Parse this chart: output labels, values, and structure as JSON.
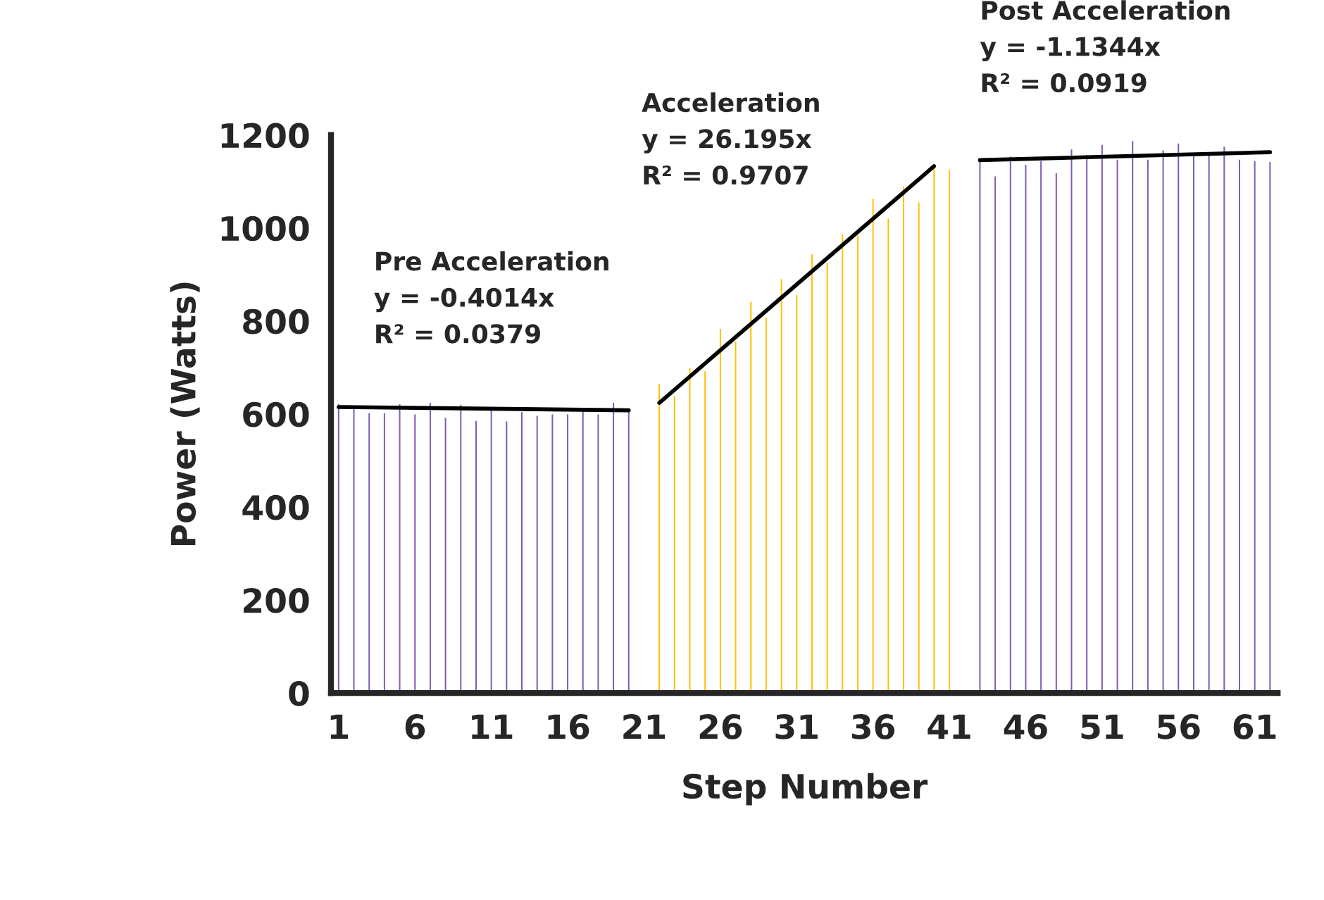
{
  "chart_data": {
    "type": "bar",
    "xlabel": "Step Number",
    "ylabel": "Power (Watts)",
    "xlim": [
      0.5,
      62.5
    ],
    "xticks": [
      1,
      6,
      11,
      16,
      21,
      26,
      31,
      36,
      41,
      46,
      51,
      56,
      61
    ],
    "ylim": [
      0,
      1200
    ],
    "yticks": [
      0,
      200,
      400,
      600,
      800,
      1000,
      1200
    ],
    "grid": false,
    "legend": false,
    "series": [
      {
        "color": "#7e5bb5",
        "x": [
          1,
          2,
          3,
          4,
          5,
          6,
          7,
          8,
          9,
          10,
          11,
          12,
          13,
          14,
          15,
          16,
          17,
          18,
          19,
          20
        ],
        "values": [
          623,
          613,
          604,
          604,
          623,
          601,
          626,
          594,
          622,
          587,
          610,
          586,
          606,
          598,
          601,
          601,
          608,
          601,
          626,
          610
        ]
      },
      {
        "color": "#ffc000",
        "x": [
          22,
          23,
          24,
          25,
          26,
          27,
          28,
          29,
          30,
          31,
          32,
          33,
          34,
          35,
          36,
          37,
          38,
          39,
          40,
          41
        ],
        "values": [
          667,
          641,
          702,
          694,
          785,
          758,
          843,
          809,
          892,
          858,
          946,
          927,
          989,
          986,
          1065,
          1022,
          1091,
          1057,
          1131,
          1127
        ]
      },
      {
        "color": "#7e5bb5",
        "x": [
          43,
          44,
          45,
          46,
          47,
          48,
          49,
          50,
          51,
          52,
          53,
          54,
          55,
          56,
          57,
          58,
          59,
          60,
          61,
          62
        ],
        "values": [
          1144,
          1113,
          1156,
          1138,
          1146,
          1120,
          1171,
          1159,
          1181,
          1149,
          1189,
          1149,
          1169,
          1184,
          1159,
          1159,
          1177,
          1149,
          1146,
          1144
        ]
      },
      {
        "type": "line",
        "color": "#000000",
        "x": [
          1,
          20
        ],
        "values": [
          615,
          608
        ]
      },
      {
        "type": "line",
        "color": "#000000",
        "x": [
          22,
          40
        ],
        "values": [
          624,
          1133
        ]
      },
      {
        "type": "line",
        "color": "#000000",
        "x": [
          43,
          62
        ],
        "values": [
          1146,
          1163
        ]
      }
    ],
    "annotations": [
      "Pre Acceleration\ny = -0.4014x\nR² = 0.0379",
      "Acceleration\ny = 26.195x\nR² = 0.9707",
      "Post Acceleration\ny = -1.1344x\nR² = 0.0919"
    ]
  }
}
